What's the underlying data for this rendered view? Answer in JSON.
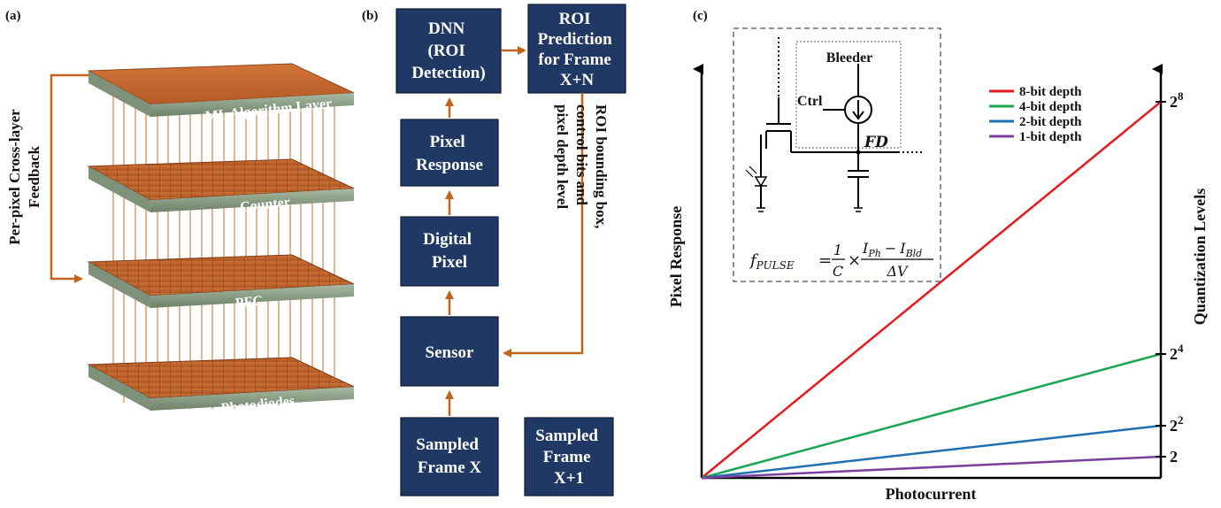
{
  "panel_a": {
    "label": "(a)",
    "feedback_label_line1": "Per-pixel Cross-layer",
    "feedback_label_line2": "Feedback",
    "layers": [
      "ML Algorithm Layer",
      "Counter",
      "PFC",
      "Photodiodes"
    ],
    "colors": {
      "copper": "#c8682e",
      "edge": "#8fa38a",
      "arrow": "#c0641e"
    }
  },
  "panel_b": {
    "label": "(b)",
    "boxes": {
      "dnn": [
        "DNN",
        "(ROI",
        "Detection)"
      ],
      "roi_pred": [
        "ROI",
        "Prediction",
        "for Frame",
        "X+N"
      ],
      "pixel_response": [
        "Pixel",
        "Response"
      ],
      "digital_pixel": [
        "Digital",
        "Pixel"
      ],
      "sensor": [
        "Sensor"
      ],
      "sampled_x": [
        "Sampled",
        "Frame X"
      ],
      "sampled_x1": [
        "Sampled",
        "Frame",
        "X+1"
      ]
    },
    "feedback_text": [
      "ROI bounding box,",
      "control bits and",
      "pixel depth level"
    ],
    "colors": {
      "box": "#1f3864",
      "arrow": "#c0641e"
    }
  },
  "panel_c": {
    "label": "(c)",
    "circuit": {
      "bleeder_label": "Bleeder",
      "ctrl_label": "Ctrl",
      "fd_label": "FD",
      "equation": {
        "f": "f",
        "f_sub": "PULSE",
        "eq": "=",
        "one": "1",
        "C": "C",
        "times": "×",
        "i_ph": "I",
        "i_ph_sub": "Ph",
        "minus": "−",
        "i_bld": "I",
        "i_bld_sub": "Bld",
        "dv": "ΔV"
      }
    },
    "chart_data": {
      "type": "line",
      "xlabel": "Photocurrent",
      "ylabel": "Pixel Response",
      "y2label": "Quantization Levels",
      "legend_position": "top-right",
      "series": [
        {
          "name": "8-bit depth",
          "color": "#e8191c",
          "end_level": 256,
          "end_label_base": "2",
          "end_label_exp": "8"
        },
        {
          "name": "4-bit depth",
          "color": "#1aa553",
          "end_level": 16,
          "end_label_base": "2",
          "end_label_exp": "4"
        },
        {
          "name": "2-bit depth",
          "color": "#1f6fb5",
          "end_level": 4,
          "end_label_base": "2",
          "end_label_exp": "2"
        },
        {
          "name": "1-bit depth",
          "color": "#7b3fa0",
          "end_level": 2,
          "end_label_base": "2",
          "end_label_exp": ""
        }
      ]
    }
  }
}
